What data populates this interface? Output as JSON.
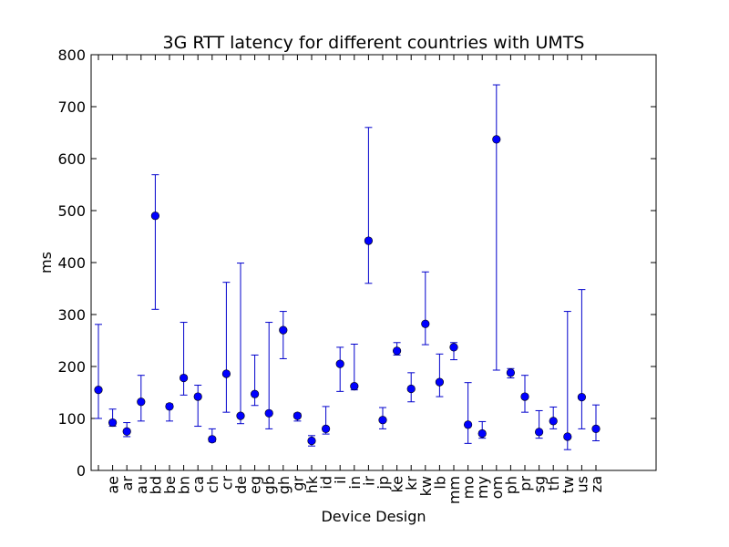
{
  "chart_data": {
    "type": "scatter",
    "title": "3G RTT latency for different countries with UMTS",
    "xlabel": "Device Design",
    "ylabel": "ms",
    "ylim": [
      0,
      800
    ],
    "yticks": [
      0,
      100,
      200,
      300,
      400,
      500,
      600,
      700,
      800
    ],
    "grid": false,
    "marker_color": "#0000ff",
    "errorbar_color": "#0000cc",
    "categories": [
      "",
      "ae",
      "ar",
      "au",
      "bd",
      "be",
      "bn",
      "ca",
      "ch",
      "cr",
      "de",
      "eg",
      "gb",
      "gh",
      "gr",
      "hk",
      "id",
      "il",
      "in",
      "ir",
      "jp",
      "ke",
      "kr",
      "kw",
      "lb",
      "mm",
      "mo",
      "my",
      "om",
      "ph",
      "pr",
      "sg",
      "th",
      "tw",
      "us",
      "za"
    ],
    "series": [
      {
        "values": [
          155,
          92,
          75,
          132,
          490,
          123,
          178,
          142,
          60,
          186,
          105,
          147,
          110,
          270,
          105,
          57,
          80,
          205,
          162,
          442,
          97,
          230,
          157,
          282,
          170,
          237,
          88,
          71,
          637,
          188,
          142,
          74,
          95,
          65,
          141,
          80
        ],
        "err_low": [
          100,
          85,
          65,
          95,
          310,
          95,
          145,
          85,
          55,
          112,
          90,
          125,
          80,
          215,
          95,
          47,
          70,
          152,
          155,
          360,
          80,
          222,
          132,
          242,
          142,
          213,
          52,
          62,
          193,
          178,
          112,
          62,
          80,
          40,
          80,
          57
        ],
        "err_high": [
          281,
          118,
          92,
          183,
          569,
          128,
          285,
          164,
          80,
          362,
          399,
          222,
          285,
          306,
          110,
          67,
          123,
          237,
          243,
          660,
          121,
          246,
          188,
          382,
          224,
          246,
          169,
          94,
          742,
          196,
          183,
          115,
          122,
          306,
          348,
          126
        ]
      }
    ]
  }
}
